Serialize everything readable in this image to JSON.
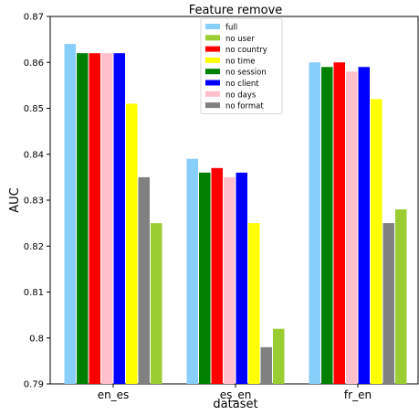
{
  "chart_data": {
    "type": "bar",
    "title": "Feature remove",
    "xlabel": "dataset",
    "ylabel": "AUC",
    "ylim": [
      0.79,
      0.87
    ],
    "yticks": [
      "0.79",
      "0.8",
      "0.81",
      "0.82",
      "0.83",
      "0.84",
      "0.85",
      "0.86",
      "0.87"
    ],
    "categories": [
      "en_es",
      "es_en",
      "fr_en"
    ],
    "legend_position": "top-center",
    "series": [
      {
        "name": "full",
        "color": "#87cefa",
        "values": [
          0.864,
          0.839,
          0.86
        ]
      },
      {
        "name": "no user",
        "color": "#9acd32",
        "values": [
          0.825,
          0.802,
          0.828
        ]
      },
      {
        "name": "no country",
        "color": "#ff0000",
        "values": [
          0.862,
          0.837,
          0.86
        ]
      },
      {
        "name": "no time",
        "color": "#ffff00",
        "values": [
          0.851,
          0.825,
          0.852
        ]
      },
      {
        "name": "no session",
        "color": "#008000",
        "values": [
          0.862,
          0.836,
          0.859
        ]
      },
      {
        "name": "no client",
        "color": "#0000ff",
        "values": [
          0.862,
          0.836,
          0.859
        ]
      },
      {
        "name": "no days",
        "color": "#ffc0cb",
        "values": [
          0.862,
          0.835,
          0.858
        ]
      },
      {
        "name": "no format",
        "color": "#808080",
        "values": [
          0.835,
          0.798,
          0.825
        ]
      }
    ],
    "bar_order": [
      "full",
      "no session",
      "no country",
      "no days",
      "no client",
      "no time",
      "no format",
      "no user"
    ]
  }
}
